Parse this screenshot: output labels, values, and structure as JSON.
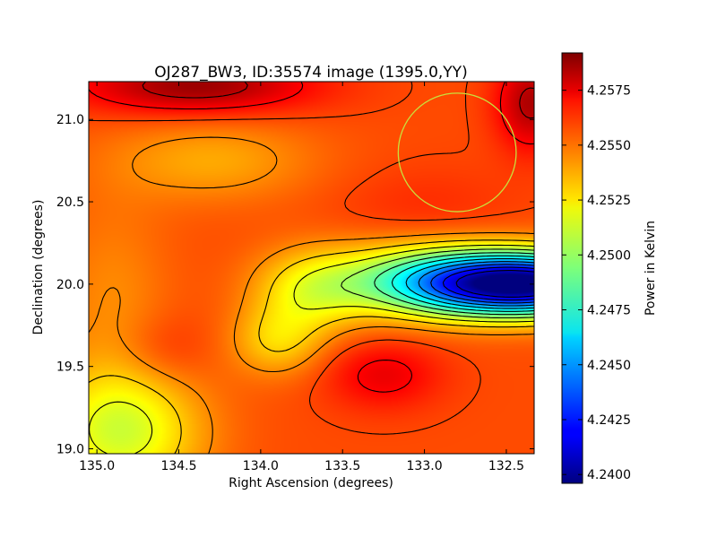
{
  "chart_data": {
    "type": "heatmap",
    "title": "OJ287_BW3, ID:35574 image (1395.0,YY)",
    "xlabel": "Right Ascension (degrees)",
    "ylabel": "Declination (degrees)",
    "xlim": [
      135.05,
      132.33
    ],
    "ylim": [
      18.97,
      21.23
    ],
    "x_ticks": [
      135.0,
      134.5,
      134.0,
      133.5,
      133.0,
      132.5
    ],
    "x_tick_labels": [
      "135.0",
      "134.5",
      "134.0",
      "133.5",
      "133.0",
      "132.5"
    ],
    "y_ticks": [
      19.0,
      19.5,
      20.0,
      20.5,
      21.0
    ],
    "y_tick_labels": [
      "19.0",
      "19.5",
      "20.0",
      "20.5",
      "21.0"
    ],
    "colormap": "jet",
    "colorbar": {
      "label": "Power in Kelvin",
      "min": 4.2396,
      "max": 4.2592,
      "ticks": [
        4.24,
        4.2425,
        4.245,
        4.2475,
        4.25,
        4.2525,
        4.255,
        4.2575
      ],
      "tick_labels": [
        "4.2400",
        "4.2425",
        "4.2450",
        "4.2475",
        "4.2500",
        "4.2525",
        "4.2550",
        "4.2575"
      ]
    },
    "field": {
      "base": 4.2553,
      "components": [
        {
          "ra": 132.4,
          "dec": 20.0,
          "amp": -0.0156,
          "sigma_ra": 0.5,
          "sigma_dec": 0.13
        },
        {
          "ra": 133.0,
          "dec": 20.05,
          "amp": -0.0035,
          "sigma_ra": 0.45,
          "sigma_dec": 0.18
        },
        {
          "ra": 133.7,
          "dec": 19.95,
          "amp": -0.0028,
          "sigma_ra": 0.25,
          "sigma_dec": 0.18
        },
        {
          "ra": 133.9,
          "dec": 19.65,
          "amp": -0.0024,
          "sigma_ra": 0.2,
          "sigma_dec": 0.15
        },
        {
          "ra": 134.85,
          "dec": 19.1,
          "amp": -0.0042,
          "sigma_ra": 0.35,
          "sigma_dec": 0.28
        },
        {
          "ra": 134.3,
          "dec": 20.75,
          "amp": -0.0018,
          "sigma_ra": 0.45,
          "sigma_dec": 0.18
        },
        {
          "ra": 134.9,
          "dec": 19.9,
          "amp": -0.0012,
          "sigma_ra": 0.25,
          "sigma_dec": 0.45
        },
        {
          "ra": 134.4,
          "dec": 21.2,
          "amp": 0.0034,
          "sigma_ra": 0.5,
          "sigma_dec": 0.12
        },
        {
          "ra": 132.35,
          "dec": 21.1,
          "amp": 0.003,
          "sigma_ra": 0.15,
          "sigma_dec": 0.2
        },
        {
          "ra": 133.25,
          "dec": 19.45,
          "amp": 0.0018,
          "sigma_ra": 0.25,
          "sigma_dec": 0.15
        },
        {
          "ra": 133.0,
          "dec": 20.4,
          "amp": 0.0008,
          "sigma_ra": 0.4,
          "sigma_dec": 0.2
        },
        {
          "ra": 134.6,
          "dec": 19.6,
          "amp": 0.0009,
          "sigma_ra": 0.2,
          "sigma_dec": 0.15
        }
      ],
      "contour_levels": [
        4.2411,
        4.2424,
        4.2437,
        4.245,
        4.2463,
        4.2476,
        4.2489,
        4.2502,
        4.2515,
        4.2528,
        4.2541,
        4.2554,
        4.2567,
        4.258
      ]
    },
    "annotations": [
      {
        "type": "circle",
        "ra": 132.8,
        "dec": 20.8,
        "radius_deg": 0.36,
        "color": "#c8e03c"
      }
    ]
  }
}
